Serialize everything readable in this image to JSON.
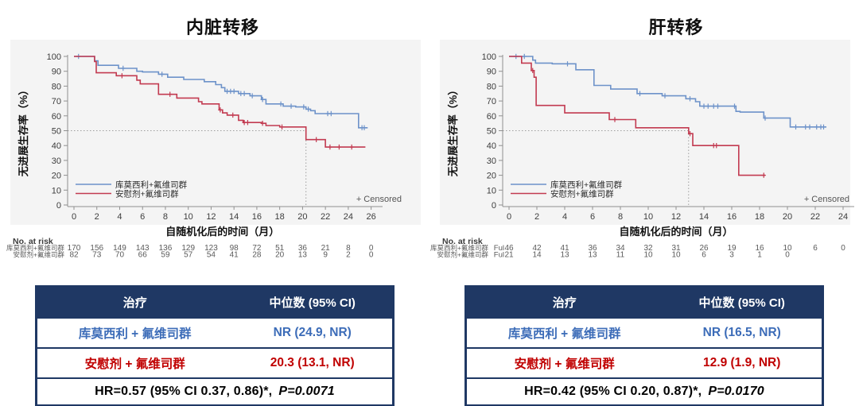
{
  "chart_data": [
    {
      "type": "line",
      "subtype": "kaplan-meier-step",
      "title": "内脏转移",
      "xlabel": "自随机化后的时间（月）",
      "ylabel": "无进展生存率（%）",
      "xlim": [
        0,
        26.8
      ],
      "ylim": [
        0,
        100
      ],
      "x_ticks": [
        0,
        2,
        4,
        6,
        8,
        10,
        12,
        14,
        16,
        18,
        20,
        22,
        24,
        26
      ],
      "y_ticks": [
        0,
        10,
        20,
        30,
        40,
        50,
        60,
        70,
        80,
        90,
        100
      ],
      "grid": false,
      "legend_position": "inside-lower-left",
      "censored_label": "+ Censored",
      "median_crosshair": {
        "y_percent": 50,
        "x_month": 20.3
      },
      "series": [
        {
          "name": "库莫西利+氟维司群",
          "color": "#6d92c9",
          "steps": [
            [
              0,
              100
            ],
            [
              1.8,
              100
            ],
            [
              1.8,
              97
            ],
            [
              2.1,
              97
            ],
            [
              2.1,
              94
            ],
            [
              3.9,
              94
            ],
            [
              3.9,
              92
            ],
            [
              5.5,
              92
            ],
            [
              5.5,
              90
            ],
            [
              6.0,
              90
            ],
            [
              6.0,
              89.5
            ],
            [
              7.4,
              89.5
            ],
            [
              7.4,
              88
            ],
            [
              8.2,
              88
            ],
            [
              8.2,
              86
            ],
            [
              9.6,
              86
            ],
            [
              9.6,
              84.5
            ],
            [
              11.4,
              84.5
            ],
            [
              11.4,
              83
            ],
            [
              12.4,
              83
            ],
            [
              12.4,
              81
            ],
            [
              12.9,
              81
            ],
            [
              12.9,
              79
            ],
            [
              13.2,
              79
            ],
            [
              13.2,
              76.5
            ],
            [
              14.4,
              76.5
            ],
            [
              14.4,
              75
            ],
            [
              15.4,
              75
            ],
            [
              15.4,
              73.5
            ],
            [
              16.4,
              73.5
            ],
            [
              16.4,
              71
            ],
            [
              16.8,
              71
            ],
            [
              16.8,
              68
            ],
            [
              18.3,
              68
            ],
            [
              18.3,
              66.5
            ],
            [
              19.4,
              66.5
            ],
            [
              19.4,
              66
            ],
            [
              20.3,
              66
            ],
            [
              20.3,
              64.5
            ],
            [
              20.7,
              64.5
            ],
            [
              20.7,
              63.5
            ],
            [
              21.1,
              63.5
            ],
            [
              21.1,
              61.5
            ],
            [
              24.9,
              61.5
            ],
            [
              24.9,
              52
            ],
            [
              25.7,
              52
            ]
          ],
          "censor_marks": [
            [
              0.4,
              100
            ],
            [
              4.3,
              92
            ],
            [
              7.7,
              88
            ],
            [
              13.4,
              76.5
            ],
            [
              13.7,
              76.5
            ],
            [
              14.0,
              76.5
            ],
            [
              14.6,
              75
            ],
            [
              14.9,
              75
            ],
            [
              15.6,
              73.5
            ],
            [
              16.5,
              71
            ],
            [
              18.1,
              68
            ],
            [
              19.0,
              66.5
            ],
            [
              20.1,
              66
            ],
            [
              20.5,
              64.5
            ],
            [
              22.2,
              61.5
            ],
            [
              22.5,
              61.5
            ],
            [
              25.2,
              52
            ],
            [
              25.4,
              52
            ]
          ]
        },
        {
          "name": "安慰剂+氟维司群",
          "color": "#c23a50",
          "steps": [
            [
              0,
              100
            ],
            [
              1.8,
              100
            ],
            [
              1.8,
              96.5
            ],
            [
              1.95,
              96.5
            ],
            [
              1.95,
              89
            ],
            [
              3.7,
              89
            ],
            [
              3.7,
              87
            ],
            [
              5.5,
              87
            ],
            [
              5.5,
              84
            ],
            [
              5.8,
              84
            ],
            [
              5.8,
              81.5
            ],
            [
              7.4,
              81.5
            ],
            [
              7.4,
              74.5
            ],
            [
              9.0,
              74.5
            ],
            [
              9.0,
              72
            ],
            [
              10.9,
              72
            ],
            [
              10.9,
              69.5
            ],
            [
              11.2,
              69.5
            ],
            [
              11.2,
              68
            ],
            [
              12.7,
              68
            ],
            [
              12.7,
              64
            ],
            [
              13.0,
              64
            ],
            [
              13.0,
              62
            ],
            [
              13.4,
              62
            ],
            [
              13.4,
              60.5
            ],
            [
              14.4,
              60.5
            ],
            [
              14.4,
              57
            ],
            [
              14.8,
              57
            ],
            [
              14.8,
              55.5
            ],
            [
              16.4,
              55.5
            ],
            [
              16.4,
              55
            ],
            [
              16.8,
              55
            ],
            [
              16.8,
              53.5
            ],
            [
              18.0,
              53.5
            ],
            [
              18.0,
              52.5
            ],
            [
              20.3,
              52.5
            ],
            [
              20.3,
              44
            ],
            [
              22.0,
              44
            ],
            [
              22.0,
              39
            ],
            [
              25.5,
              39
            ]
          ],
          "censor_marks": [
            [
              4.2,
              87
            ],
            [
              8.4,
              74.5
            ],
            [
              12.8,
              64
            ],
            [
              13.9,
              60.5
            ],
            [
              14.9,
              55.5
            ],
            [
              15.2,
              55.5
            ],
            [
              16.5,
              55
            ],
            [
              18.2,
              52.5
            ],
            [
              21.2,
              44
            ],
            [
              22.4,
              39
            ],
            [
              23.2,
              39
            ],
            [
              24.3,
              39
            ]
          ]
        }
      ],
      "at_risk": {
        "label": "No. at risk",
        "row_prefix": "",
        "rows": [
          {
            "name": "库莫西利+氟维司群",
            "values": [
              170,
              156,
              149,
              143,
              136,
              129,
              123,
              98,
              72,
              51,
              36,
              21,
              8,
              0
            ]
          },
          {
            "name": "安慰剂+氟维司群",
            "values": [
              82,
              73,
              70,
              66,
              59,
              57,
              54,
              41,
              28,
              20,
              13,
              9,
              2,
              0
            ]
          }
        ]
      }
    },
    {
      "type": "line",
      "subtype": "kaplan-meier-step",
      "title": "肝转移",
      "xlabel": "自随机化后的时间（月）",
      "ylabel": "无进展生存率（%）",
      "xlim": [
        0,
        24.8
      ],
      "ylim": [
        0,
        100
      ],
      "x_ticks": [
        0,
        2,
        4,
        6,
        8,
        10,
        12,
        14,
        16,
        18,
        20,
        22,
        24
      ],
      "y_ticks": [
        0,
        10,
        20,
        30,
        40,
        50,
        60,
        70,
        80,
        90,
        100
      ],
      "grid": false,
      "legend_position": "inside-lower-left",
      "censored_label": "+ Censored",
      "median_crosshair": {
        "y_percent": 50,
        "x_month": 12.9
      },
      "series": [
        {
          "name": "库莫西利+氟维司群",
          "color": "#6d92c9",
          "steps": [
            [
              0,
              100
            ],
            [
              1.7,
              100
            ],
            [
              1.7,
              97.5
            ],
            [
              1.9,
              97.5
            ],
            [
              1.9,
              95.5
            ],
            [
              3.1,
              95.5
            ],
            [
              3.1,
              95
            ],
            [
              4.8,
              95
            ],
            [
              4.8,
              91
            ],
            [
              6.1,
              91
            ],
            [
              6.1,
              80.5
            ],
            [
              7.3,
              80.5
            ],
            [
              7.3,
              78
            ],
            [
              9.2,
              78
            ],
            [
              9.2,
              75
            ],
            [
              11.0,
              75
            ],
            [
              11.0,
              73.5
            ],
            [
              12.7,
              73.5
            ],
            [
              12.7,
              71.5
            ],
            [
              13.4,
              71.5
            ],
            [
              13.4,
              69.5
            ],
            [
              13.7,
              69.5
            ],
            [
              13.7,
              66.5
            ],
            [
              16.3,
              66.5
            ],
            [
              16.3,
              63
            ],
            [
              16.6,
              63
            ],
            [
              16.6,
              62.5
            ],
            [
              18.3,
              62.5
            ],
            [
              18.3,
              58.5
            ],
            [
              20.2,
              58.5
            ],
            [
              20.2,
              52.5
            ],
            [
              22.8,
              52.5
            ]
          ],
          "censor_marks": [
            [
              0.5,
              100
            ],
            [
              1.1,
              100
            ],
            [
              4.2,
              95
            ],
            [
              9.4,
              75
            ],
            [
              11.2,
              73.5
            ],
            [
              13.0,
              71.5
            ],
            [
              14.0,
              66.5
            ],
            [
              14.3,
              66.5
            ],
            [
              14.7,
              66.5
            ],
            [
              15.0,
              66.5
            ],
            [
              16.2,
              66.5
            ],
            [
              18.4,
              58.5
            ],
            [
              20.6,
              52.5
            ],
            [
              21.3,
              52.5
            ],
            [
              21.6,
              52.5
            ],
            [
              22.1,
              52.5
            ],
            [
              22.4,
              52.5
            ],
            [
              22.6,
              52.5
            ]
          ]
        },
        {
          "name": "安慰剂+氟维司群",
          "color": "#c23a50",
          "steps": [
            [
              0,
              100
            ],
            [
              0.9,
              100
            ],
            [
              0.9,
              95.5
            ],
            [
              1.6,
              95.5
            ],
            [
              1.6,
              90.5
            ],
            [
              1.8,
              90.5
            ],
            [
              1.8,
              86
            ],
            [
              1.95,
              86
            ],
            [
              1.95,
              67
            ],
            [
              4.0,
              67
            ],
            [
              4.0,
              62
            ],
            [
              7.2,
              62
            ],
            [
              7.2,
              57.5
            ],
            [
              9.1,
              57.5
            ],
            [
              9.1,
              52
            ],
            [
              12.9,
              52
            ],
            [
              12.9,
              48
            ],
            [
              13.2,
              48
            ],
            [
              13.2,
              40
            ],
            [
              16.5,
              40
            ],
            [
              16.5,
              20
            ],
            [
              18.4,
              20
            ]
          ],
          "censor_marks": [
            [
              1.7,
              90.5
            ],
            [
              7.6,
              57.5
            ],
            [
              13.0,
              48
            ],
            [
              14.7,
              40
            ],
            [
              14.9,
              40
            ],
            [
              18.3,
              20
            ]
          ]
        }
      ],
      "at_risk": {
        "label": "No. at risk",
        "row_prefix": "Ful",
        "rows": [
          {
            "name": "库莫西利+氟维司群",
            "values": [
              46,
              42,
              41,
              36,
              34,
              32,
              31,
              26,
              19,
              16,
              10,
              6,
              0
            ]
          },
          {
            "name": "安慰剂+氟维司群",
            "values": [
              21,
              14,
              13,
              13,
              11,
              10,
              10,
              6,
              3,
              1,
              0
            ]
          }
        ]
      }
    }
  ],
  "summary_tables": [
    {
      "header": {
        "treatment": "治疗",
        "median": "中位数 (95% CI)"
      },
      "rows": [
        {
          "treatment": "库莫西利 + 氟维司群",
          "median": "NR (24.9, NR)"
        },
        {
          "treatment": "安慰剂 + 氟维司群",
          "median": "20.3 (13.1, NR)"
        }
      ],
      "hr_text": "HR=0.57 (95% CI 0.37, 0.86)*,",
      "p_text": "P=0.0071"
    },
    {
      "header": {
        "treatment": "治疗",
        "median": "中位数 (95% CI)"
      },
      "rows": [
        {
          "treatment": "库莫西利 + 氟维司群",
          "median": "NR (16.5, NR)"
        },
        {
          "treatment": "安慰剂 + 氟维司群",
          "median": "12.9 (1.9, NR)"
        }
      ],
      "hr_text": "HR=0.42 (95% CI 0.20, 0.87)*,",
      "p_text": "P=0.0170"
    }
  ],
  "colors": {
    "navy": "#1f3864",
    "curve_blue": "#6d92c9",
    "curve_red": "#c23a50",
    "table_blue_text": "#3c6cb8",
    "table_red_text": "#c00000",
    "panel_background": "#f4f4f4",
    "axis": "#909090",
    "crosshair": "#9e9e9e"
  }
}
